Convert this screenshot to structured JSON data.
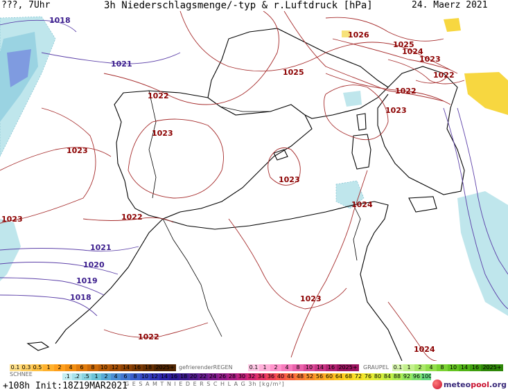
{
  "header": {
    "left": "???, 7Uhr",
    "title": "3h Niederschlagsmenge/-typ & r.Luftdruck [hPa]",
    "date": "24. Maerz 2021"
  },
  "isobars": {
    "red": [
      {
        "label": "1026"
      },
      {
        "label": "1025"
      },
      {
        "label": "1024"
      },
      {
        "label": "1023"
      },
      {
        "label": "1022"
      },
      {
        "label": "1022"
      },
      {
        "label": "1025"
      },
      {
        "label": "1022"
      },
      {
        "label": "1023"
      },
      {
        "label": "1023"
      },
      {
        "label": "1023"
      },
      {
        "label": "1023"
      },
      {
        "label": "1023"
      },
      {
        "label": "1024"
      },
      {
        "label": "1022"
      },
      {
        "label": "1023"
      },
      {
        "label": "1022"
      },
      {
        "label": "1024"
      }
    ],
    "blue": [
      {
        "label": "1018"
      },
      {
        "label": "1021"
      },
      {
        "label": "1021"
      },
      {
        "label": "1020"
      },
      {
        "label": "1019"
      },
      {
        "label": "1018"
      }
    ]
  },
  "legend": {
    "snow": {
      "name": "SCHNEE",
      "values": [
        "0.1",
        "0.3",
        "0.5",
        "1",
        "2",
        "4",
        "6",
        "8",
        "10",
        "12",
        "14",
        "16",
        "18",
        "2025+"
      ],
      "colors": [
        "#ffe08a",
        "#ffd166",
        "#ffc245",
        "#ffb12e",
        "#ff9f1c",
        "#f28f12",
        "#e07b0c",
        "#cc6a08",
        "#b85c06",
        "#a34e05",
        "#8f4304",
        "#7a3903",
        "#662f02",
        "#4f2401"
      ]
    },
    "freezing_rain": {
      "name": "gefrierenderREGEN",
      "values": [
        "0.1",
        "1",
        "2",
        "4",
        "8",
        "10",
        "14",
        "16",
        "2025+"
      ],
      "colors": [
        "#ffc9e6",
        "#ffb0d9",
        "#ff94cc",
        "#f77cbd",
        "#ea62ab",
        "#db4a98",
        "#c93685",
        "#b42372",
        "#9c1460"
      ]
    },
    "hail": {
      "name": "GRAUPEL",
      "values": [
        "0.1",
        "1",
        "2",
        "4",
        "8",
        "10",
        "14",
        "16",
        "2025+"
      ],
      "colors": [
        "#d9f7b0",
        "#c3f08d",
        "#abe86a",
        "#93df4c",
        "#7bd333",
        "#64c421",
        "#50b315",
        "#3e9e0e",
        "#2e8708"
      ]
    },
    "total": {
      "name": "G E S A M T N I E D E R S C H L A G   3h   [kg/m²]",
      "values": [
        ".1",
        ".2",
        ".5",
        "1",
        "2",
        "4",
        "6",
        "8",
        "10",
        "12",
        "14",
        "16",
        "18",
        "20",
        "22",
        "24",
        "26",
        "28",
        "30",
        "32",
        "34",
        "36",
        "40",
        "44",
        "48",
        "52",
        "56",
        "60",
        "64",
        "68",
        "72",
        "76",
        "80",
        "84",
        "88",
        "92",
        "96",
        "100"
      ],
      "colors": [
        "#c6eef2",
        "#a8e2ea",
        "#8ad4e2",
        "#6bc3d8",
        "#57a9d6",
        "#4b8fd4",
        "#4277d0",
        "#3b5fcc",
        "#3548c4",
        "#2f34b8",
        "#2c22a8",
        "#2d1a96",
        "#3b1a8e",
        "#4f1a8c",
        "#651b8c",
        "#7c1c8c",
        "#931d8a",
        "#aa1f86",
        "#c0227e",
        "#d32873",
        "#e23266",
        "#ee4058",
        "#f5534a",
        "#f8663e",
        "#fa7a33",
        "#fb8e2a",
        "#fca224",
        "#fdb520",
        "#fdc71f",
        "#fdd722",
        "#f7e229",
        "#ecea31",
        "#dcef3a",
        "#c7f045",
        "#b0ee52",
        "#98ea60",
        "#80e470",
        "#68dc82"
      ]
    }
  },
  "footer": {
    "run": "+108h Init:18Z19MAR2021",
    "logo_main": "meteo",
    "logo_accent": "pool",
    "logo_tld": ".org"
  }
}
